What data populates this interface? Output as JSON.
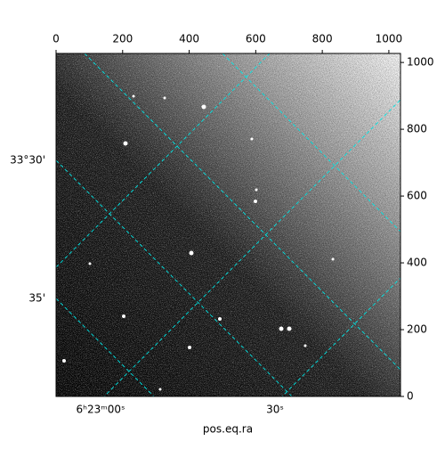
{
  "chart_data": {
    "type": "image",
    "xlabel": "pos.eq.ra",
    "xlim": [
      0,
      1035
    ],
    "ylim": [
      0,
      1027
    ],
    "xticks": [
      0,
      200,
      400,
      600,
      800,
      1000
    ],
    "yticks": [
      0,
      200,
      400,
      600,
      800,
      1000
    ],
    "ra_tick_labels": [
      "6ʰ23ᵐ00ˢ",
      "30ˢ"
    ],
    "dec_tick_labels": [
      "33°30'",
      "35'"
    ],
    "grid_color": "#00e5e5"
  }
}
